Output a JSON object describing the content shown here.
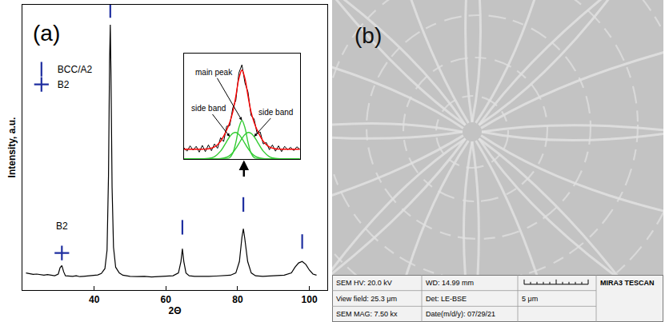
{
  "chart_data": {
    "type": "line",
    "panel_label": "(a)",
    "x_label": "2Θ",
    "y_label": "Intensity, a.u.",
    "xlim": [
      20,
      105
    ],
    "xticks": [
      40,
      60,
      80,
      100
    ],
    "ylim": [
      0,
      100
    ],
    "tick_labels": "x",
    "grid": false,
    "legend": "upper left",
    "series": [
      {
        "type": "line",
        "color": "#000000",
        "x": [
          21,
          22,
          23,
          24,
          25,
          26,
          27,
          28,
          29,
          30,
          30.5,
          31,
          31.5,
          32,
          33,
          34,
          35,
          36,
          37,
          38,
          39,
          40,
          41,
          42,
          43,
          43.6,
          44.0,
          44.3,
          44.5,
          44.7,
          45.0,
          45.4,
          46,
          47,
          48,
          49,
          50,
          52,
          54,
          56,
          58,
          60,
          62,
          63.5,
          64.2,
          64.6,
          65.0,
          65.6,
          66.5,
          68,
          70,
          72,
          74,
          76,
          78,
          79.5,
          80.5,
          81.2,
          81.6,
          82.0,
          82.8,
          83.8,
          85,
          87,
          89,
          91,
          93,
          95,
          96,
          97,
          98,
          99,
          100,
          101,
          102
        ],
        "values": [
          6.0,
          5.8,
          5.5,
          5.6,
          5.3,
          5.2,
          5.4,
          5.1,
          5.0,
          5.6,
          7.8,
          8.6,
          6.4,
          5.0,
          4.9,
          4.8,
          5.0,
          4.7,
          4.8,
          4.9,
          5.0,
          5.1,
          5.3,
          5.8,
          7.5,
          14,
          40,
          80,
          93,
          75,
          36,
          15,
          8,
          6,
          5.2,
          5.0,
          4.8,
          4.7,
          4.8,
          4.6,
          4.7,
          4.8,
          5.0,
          6,
          10,
          14.5,
          10,
          6,
          5,
          4.8,
          4.7,
          4.8,
          4.9,
          5.0,
          5.2,
          6,
          10,
          18.5,
          21.5,
          18,
          10,
          6,
          5,
          4.8,
          4.9,
          5.0,
          5.2,
          6,
          8,
          9.5,
          10,
          9,
          7,
          5.6,
          5.2
        ]
      },
      {
        "name": "BCC/A2",
        "type": "scatter",
        "marker": "line-ns",
        "color": "#1f2fa0",
        "x": [
          44.5,
          64.6,
          81.6,
          98.0
        ],
        "values": [
          98,
          22,
          30,
          17
        ]
      },
      {
        "name": "B2",
        "type": "scatter",
        "marker": "cross-thin",
        "color": "#1f2fa0",
        "x": [
          31
        ],
        "values": [
          13
        ]
      }
    ],
    "annotations": [
      {
        "text": "B2",
        "x": 31,
        "y": 20
      }
    ],
    "inset": {
      "xlim": [
        77,
        86.5
      ],
      "ylim": [
        0,
        22
      ],
      "tick_labels": false,
      "series": [
        {
          "type": "line",
          "color": "#000000",
          "x": [
            77,
            77.25,
            77.5,
            77.75,
            78,
            78.25,
            78.5,
            78.75,
            79,
            79.25,
            79.5,
            79.75,
            80,
            80.25,
            80.5,
            80.75,
            81,
            81.25,
            81.5,
            81.75,
            82,
            82.25,
            82.5,
            82.75,
            83,
            83.25,
            83.5,
            83.75,
            84,
            84.25,
            84.5,
            84.75,
            85,
            85.25,
            85.5,
            85.75,
            86,
            86.25,
            86.5
          ],
          "values": [
            2.3,
            1.6,
            2.7,
            1.8,
            2.6,
            1.4,
            2.8,
            1.5,
            2.9,
            1.7,
            3.1,
            2.2,
            4.4,
            3.6,
            6.8,
            6.9,
            10.6,
            12.2,
            17.9,
            19.6,
            15.8,
            13.9,
            9.0,
            8.3,
            5.2,
            5.6,
            3.1,
            3.4,
            1.9,
            2.9,
            1.6,
            2.7,
            1.5,
            2.6,
            1.9,
            2.4,
            1.7,
            2.5,
            2.0
          ]
        },
        {
          "type": "line",
          "color": "#ff0000",
          "x": [
            77,
            77.5,
            78,
            78.5,
            79,
            79.5,
            80,
            80.5,
            80.75,
            81,
            81.25,
            81.5,
            81.75,
            82,
            82.25,
            82.5,
            82.75,
            83,
            83.5,
            84,
            84.5,
            85,
            85.5,
            86,
            86.5
          ],
          "values": [
            2,
            2,
            2,
            2.01,
            2.09,
            2.47,
            3.66,
            6.0,
            7.59,
            9.77,
            13.04,
            16.73,
            18.5,
            16.73,
            13.04,
            9.77,
            7.59,
            6.0,
            3.66,
            2.47,
            2.09,
            2.01,
            2,
            2,
            2
          ]
        },
        {
          "type": "line",
          "color": "#33cc33",
          "x": [
            77,
            77.5,
            78,
            78.5,
            79,
            79.5,
            80,
            80.5,
            80.75,
            81,
            81.25,
            81.5,
            81.75,
            82,
            82.25,
            82.5,
            82.75,
            83,
            83.5,
            84,
            84.5,
            85,
            85.5,
            86,
            86.5
          ],
          "values": [
            0,
            0,
            0,
            0,
            0,
            0,
            0,
            0.04,
            0.26,
            1.17,
            3.4,
            6.46,
            8,
            6.46,
            3.4,
            1.17,
            0.26,
            0.04,
            0,
            0,
            0,
            0,
            0,
            0,
            0
          ]
        },
        {
          "type": "line",
          "color": "#33cc33",
          "x": [
            77,
            77.5,
            78,
            78.5,
            79,
            79.5,
            80,
            80.5,
            80.75,
            81,
            81.25,
            81.5,
            81.75,
            82,
            82.25,
            82.5,
            82.75,
            83,
            83.5,
            84,
            84.5,
            85,
            85.5,
            86,
            86.5
          ],
          "values": [
            0,
            0,
            0,
            0.01,
            0.09,
            0.46,
            1.6,
            3.62,
            4.63,
            5.31,
            5.5,
            5.09,
            4.25,
            3.18,
            2.14,
            1.29,
            0.7,
            0.34,
            0.06,
            0.01,
            0,
            0,
            0,
            0,
            0
          ]
        },
        {
          "type": "line",
          "color": "#33cc33",
          "x": [
            77,
            77.5,
            78,
            78.5,
            79,
            79.5,
            80,
            80.5,
            80.75,
            81,
            81.25,
            81.5,
            81.75,
            82,
            82.25,
            82.5,
            82.75,
            83,
            83.5,
            84,
            84.5,
            85,
            85.5,
            86,
            86.5
          ],
          "values": [
            0,
            0,
            0,
            0,
            0,
            0.01,
            0.06,
            0.34,
            0.7,
            1.29,
            2.14,
            3.18,
            4.25,
            5.09,
            5.5,
            5.31,
            4.63,
            3.62,
            1.6,
            0.46,
            0.09,
            0.01,
            0,
            0,
            0
          ]
        }
      ],
      "annotations": [
        {
          "text": "main peak",
          "x": 81.75,
          "y": 8
        },
        {
          "text": "side band",
          "x": 80.75,
          "y": 4.63
        },
        {
          "text": "side band",
          "x": 82.75,
          "y": 4.63
        }
      ]
    }
  },
  "image": {
    "panel_label": "(b)",
    "info_bar": {
      "hv": "SEM HV: 20.0 kV",
      "view_field": "View field: 25.3 μm",
      "magnification": "SEM MAG: 7.50 kx",
      "wd": "WD: 14.99 mm",
      "detector": "Det: LE-BSE",
      "date": "Date(m/d/y): 07/29/21",
      "scale_bar": "5 μm",
      "instrument": "MIRA3 TESCAN"
    }
  }
}
